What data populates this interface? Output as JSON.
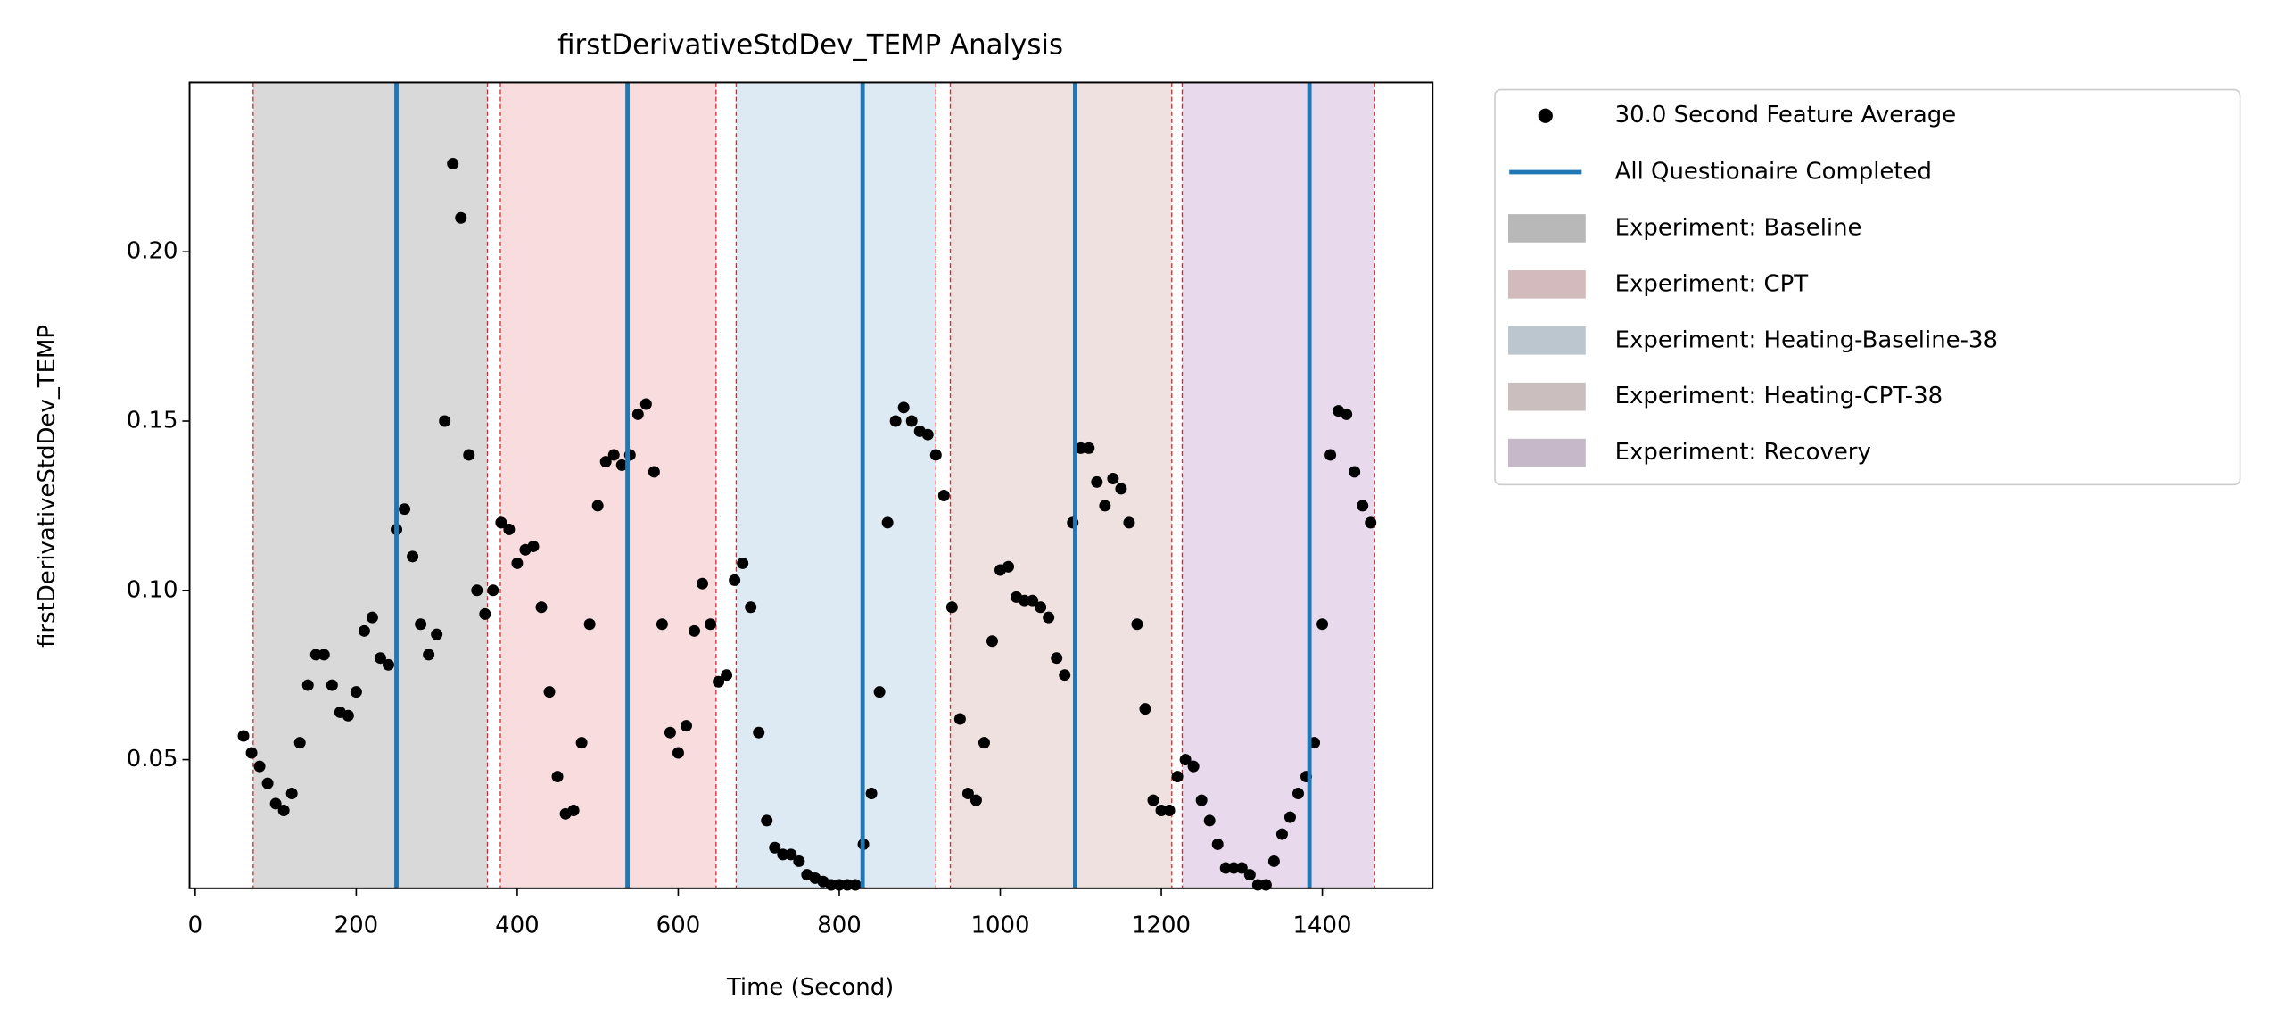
{
  "chart_data": {
    "type": "scatter",
    "title": "firstDerivativeStdDev_TEMP Analysis",
    "x_label": "Time (Second)",
    "y_label": "firstDerivativeStdDev_TEMP",
    "xlim": [
      -7,
      1537
    ],
    "ylim": [
      0.012,
      0.25
    ],
    "xticks": [
      0,
      200,
      400,
      600,
      800,
      1000,
      1200,
      1400
    ],
    "yticks": [
      0.05,
      {
        "value": 0.1,
        "label": "0.10"
      },
      0.15,
      {
        "value": 0.2,
        "label": "0.20"
      }
    ],
    "legend": "outside upper right",
    "series": [
      {
        "name": "30.0 Second Feature Average",
        "color": "#000000",
        "x": [
          60,
          70,
          80,
          90,
          100,
          110,
          120,
          130,
          140,
          150,
          160,
          170,
          180,
          190,
          200,
          210,
          220,
          230,
          240,
          250,
          260,
          270,
          280,
          290,
          300,
          310,
          320,
          330,
          340,
          350,
          360,
          370,
          380,
          390,
          400,
          410,
          420,
          430,
          440,
          450,
          460,
          470,
          480,
          490,
          500,
          510,
          520,
          530,
          540,
          550,
          560,
          570,
          580,
          590,
          600,
          610,
          620,
          630,
          640,
          650,
          660,
          670,
          680,
          690,
          700,
          710,
          720,
          730,
          740,
          750,
          760,
          770,
          780,
          790,
          800,
          810,
          820,
          830,
          840,
          850,
          860,
          870,
          880,
          890,
          900,
          910,
          920,
          930,
          940,
          950,
          960,
          970,
          980,
          990,
          1000,
          1010,
          1020,
          1030,
          1040,
          1050,
          1060,
          1070,
          1080,
          1090,
          1100,
          1110,
          1120,
          1130,
          1140,
          1150,
          1160,
          1170,
          1180,
          1190,
          1200,
          1210,
          1220,
          1230,
          1240,
          1250,
          1260,
          1270,
          1280,
          1290,
          1300,
          1310,
          1320,
          1330,
          1340,
          1350,
          1360,
          1370,
          1380,
          1390,
          1400,
          1410,
          1420,
          1430,
          1440,
          1450,
          1460
        ],
        "values": [
          0.057,
          0.052,
          0.048,
          0.043,
          0.037,
          0.035,
          0.04,
          0.055,
          0.072,
          0.081,
          0.081,
          0.072,
          0.064,
          0.063,
          0.07,
          0.088,
          0.092,
          0.08,
          0.078,
          0.118,
          0.124,
          0.11,
          0.09,
          0.081,
          0.087,
          0.15,
          0.226,
          0.21,
          0.14,
          0.1,
          0.093,
          0.1,
          0.12,
          0.118,
          0.108,
          0.112,
          0.113,
          0.095,
          0.07,
          0.045,
          0.034,
          0.035,
          0.055,
          0.09,
          0.125,
          0.138,
          0.14,
          0.137,
          0.14,
          0.152,
          0.155,
          0.135,
          0.09,
          0.058,
          0.052,
          0.06,
          0.088,
          0.102,
          0.09,
          0.073,
          0.075,
          0.103,
          0.108,
          0.095,
          0.058,
          0.032,
          0.024,
          0.022,
          0.022,
          0.02,
          0.016,
          0.015,
          0.014,
          0.013,
          0.013,
          0.013,
          0.013,
          0.025,
          0.04,
          0.07,
          0.12,
          0.15,
          0.154,
          0.15,
          0.147,
          0.146,
          0.14,
          0.128,
          0.095,
          0.062,
          0.04,
          0.038,
          0.055,
          0.085,
          0.106,
          0.107,
          0.098,
          0.097,
          0.097,
          0.095,
          0.092,
          0.08,
          0.075,
          0.12,
          0.142,
          0.142,
          0.132,
          0.125,
          0.133,
          0.13,
          0.12,
          0.09,
          0.065,
          0.038,
          0.035,
          0.035,
          0.045,
          0.05,
          0.048,
          0.038,
          0.032,
          0.025,
          0.018,
          0.018,
          0.018,
          0.016,
          0.013,
          0.013,
          0.02,
          0.028,
          0.033,
          0.04,
          0.045,
          0.055,
          0.09,
          0.14,
          0.153,
          0.152,
          0.135,
          0.125,
          0.12
        ]
      }
    ],
    "markers": {
      "name": "All Questionaire Completed",
      "color": "#1f77b4",
      "x": [
        250,
        537,
        829,
        1093,
        1384
      ]
    },
    "regions": [
      {
        "name": "Experiment: Baseline",
        "color": "#d9d9d9",
        "range": [
          72,
          363
        ]
      },
      {
        "name": "Experiment: CPT",
        "color": "#f8dcde",
        "range": [
          379,
          647
        ]
      },
      {
        "name": "Experiment: Heating-Baseline-38",
        "color": "#dde9f3",
        "range": [
          672,
          920
        ]
      },
      {
        "name": "Experiment: Heating-CPT-38",
        "color": "#eee1df",
        "range": [
          938,
          1213
        ]
      },
      {
        "name": "Experiment: Recovery",
        "color": "#e9d9ed",
        "range": [
          1226,
          1465
        ]
      }
    ]
  }
}
